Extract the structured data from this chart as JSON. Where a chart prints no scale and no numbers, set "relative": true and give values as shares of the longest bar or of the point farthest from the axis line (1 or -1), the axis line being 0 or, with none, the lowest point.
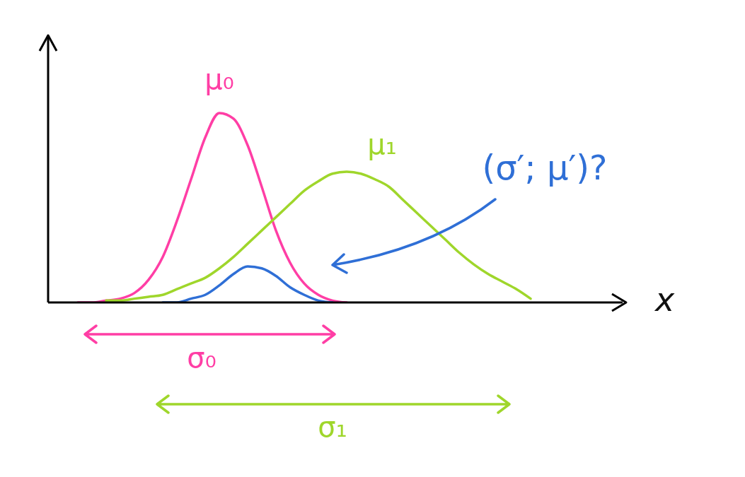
{
  "chart_data": {
    "type": "line",
    "xlabel": "x",
    "relative": true,
    "legend": false,
    "grid": false,
    "marker": "none",
    "line_style": "solid",
    "annotations": [
      "μ₀",
      "μ₁",
      "(σ′; μ′)?",
      "σ₀",
      "σ₁"
    ],
    "categories": [
      null,
      null,
      null,
      null,
      null,
      null,
      null,
      null,
      null,
      null,
      null,
      null,
      null,
      null,
      null,
      null,
      null,
      null,
      null,
      null,
      null,
      null,
      null,
      null,
      null,
      null,
      null,
      null,
      null,
      null,
      null,
      null,
      null,
      null,
      null,
      null,
      null,
      null,
      null,
      null,
      null
    ],
    "series": [
      {
        "color": "#ff3ea5",
        "values": [
          null,
          null,
          0,
          0,
          0.01,
          0.02,
          0.05,
          0.12,
          0.24,
          0.43,
          0.65,
          0.87,
          1,
          0.97,
          0.83,
          0.61,
          0.38,
          0.21,
          0.1,
          0.04,
          0.01,
          0,
          null,
          null,
          null,
          null,
          null,
          null,
          null,
          null,
          null,
          null,
          null,
          null,
          null,
          null,
          null,
          null,
          null,
          null,
          null
        ]
      },
      {
        "color": "#9fd62b",
        "values": [
          null,
          null,
          null,
          null,
          0.01,
          0.01,
          0.02,
          0.03,
          0.04,
          0.07,
          0.1,
          0.13,
          0.18,
          0.24,
          0.31,
          0.38,
          0.45,
          0.52,
          0.59,
          0.64,
          0.68,
          0.69,
          0.68,
          0.65,
          0.61,
          0.54,
          0.47,
          0.4,
          0.33,
          0.26,
          0.2,
          0.15,
          0.11,
          0.07,
          0.02,
          null,
          null,
          null,
          null,
          null,
          null
        ]
      },
      {
        "color": "#2f6fd6",
        "values": [
          null,
          null,
          null,
          null,
          null,
          null,
          null,
          null,
          0,
          0,
          0.02,
          0.04,
          0.09,
          0.15,
          0.19,
          0.18,
          0.14,
          0.08,
          0.04,
          0.01,
          0,
          null,
          null,
          null,
          null,
          null,
          null,
          null,
          null,
          null,
          null,
          null,
          null,
          null,
          null,
          null,
          null,
          null,
          null,
          null,
          null
        ]
      }
    ]
  }
}
